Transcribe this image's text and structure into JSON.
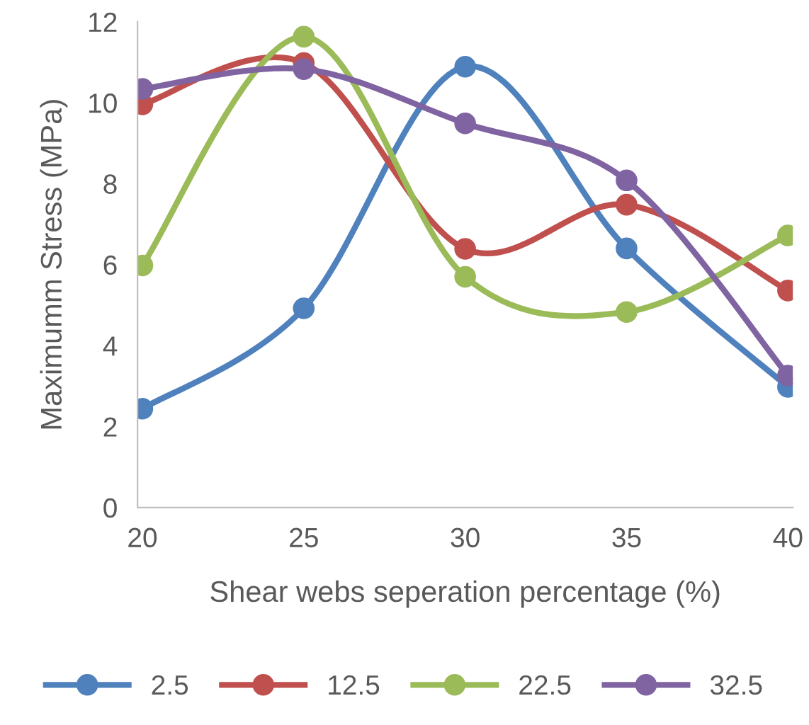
{
  "chart_data": {
    "type": "line",
    "xlabel": "Shear webs seperation percentage (%)",
    "ylabel": "Maximumm Stress (MPa)",
    "categories": [
      "20",
      "25",
      "30",
      "35",
      "40"
    ],
    "series": [
      {
        "name": "2.5",
        "color": "#4f81bd",
        "values": [
          2.44,
          4.92,
          10.89,
          6.4,
          2.98
        ]
      },
      {
        "name": "12.5",
        "color": "#c0504d",
        "values": [
          9.96,
          10.98,
          6.39,
          7.48,
          5.36
        ]
      },
      {
        "name": "22.5",
        "color": "#9bbb59",
        "values": [
          5.98,
          11.63,
          5.7,
          4.83,
          6.72
        ]
      },
      {
        "name": "32.5",
        "color": "#8064a2",
        "values": [
          10.34,
          10.83,
          9.49,
          8.08,
          3.26
        ]
      }
    ],
    "ylim": [
      0,
      12
    ],
    "yticks": [
      0,
      2,
      4,
      6,
      8,
      10,
      12
    ],
    "grid": false,
    "legend": "bottom",
    "marker": "circle",
    "line_style": "solid"
  }
}
